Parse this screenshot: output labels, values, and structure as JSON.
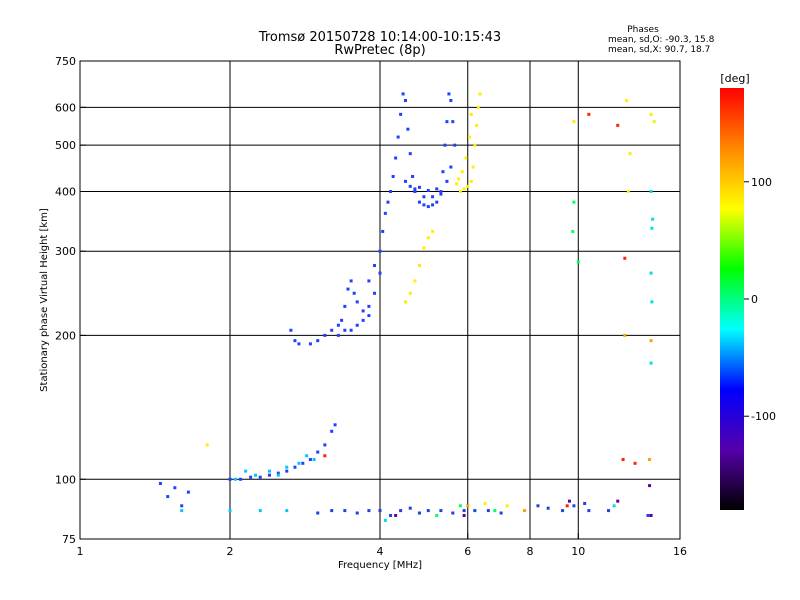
{
  "chart_data": {
    "type": "scatter",
    "title": "Tromsø 20150728 10:14:00-10:15:43",
    "subtitle": "RwPretec (8p)",
    "xlabel": "Frequency [MHz]",
    "ylabel": "Stationary phase Virtual Height [km]",
    "x_scale": "log",
    "y_scale": "log",
    "xlim": [
      1,
      16
    ],
    "ylim": [
      75,
      750
    ],
    "x_ticks": [
      1,
      2,
      4,
      6,
      8,
      10,
      16
    ],
    "y_ticks": [
      75,
      100,
      200,
      300,
      400,
      500,
      600,
      750
    ],
    "grid": true,
    "phases": {
      "heading": "Phases",
      "o_line": "mean, sd,O: -90.3, 15.8",
      "x_line": "mean, sd,X:  90.7, 18.7"
    },
    "colorbar": {
      "label": "[deg]",
      "ticks": [
        100,
        0,
        -100
      ],
      "range": [
        -180,
        180
      ],
      "colors_top_to_bottom": [
        "#ff0000",
        "#ff8800",
        "#ffff00",
        "#00ff00",
        "#00ffff",
        "#0000ff",
        "#5500aa",
        "#000000"
      ]
    },
    "series": [
      {
        "color": "#1e40ff",
        "points": [
          [
            1.45,
            98
          ],
          [
            1.5,
            92
          ],
          [
            1.6,
            88
          ],
          [
            1.65,
            94
          ],
          [
            1.55,
            96
          ],
          [
            2.0,
            100
          ],
          [
            2.1,
            100
          ],
          [
            2.2,
            101
          ],
          [
            2.3,
            101
          ],
          [
            2.4,
            102
          ],
          [
            2.5,
            103
          ],
          [
            2.6,
            104
          ],
          [
            2.7,
            106
          ],
          [
            2.8,
            108
          ],
          [
            2.9,
            110
          ],
          [
            3.0,
            114
          ],
          [
            3.1,
            118
          ],
          [
            3.2,
            126
          ],
          [
            3.25,
            130
          ],
          [
            2.65,
            205
          ],
          [
            2.7,
            195
          ],
          [
            2.75,
            192
          ],
          [
            2.9,
            192
          ],
          [
            3.0,
            195
          ],
          [
            3.1,
            200
          ],
          [
            3.2,
            205
          ],
          [
            3.3,
            200
          ],
          [
            3.35,
            215
          ],
          [
            3.4,
            230
          ],
          [
            3.45,
            250
          ],
          [
            3.5,
            260
          ],
          [
            3.55,
            245
          ],
          [
            3.6,
            235
          ],
          [
            3.7,
            225
          ],
          [
            3.8,
            230
          ],
          [
            3.9,
            245
          ],
          [
            4.0,
            270
          ],
          [
            3.3,
            210
          ],
          [
            3.4,
            205
          ],
          [
            3.5,
            205
          ],
          [
            3.6,
            210
          ],
          [
            3.7,
            215
          ],
          [
            3.8,
            220
          ],
          [
            3.8,
            260
          ],
          [
            3.9,
            280
          ],
          [
            4.0,
            300
          ],
          [
            4.05,
            330
          ],
          [
            4.1,
            360
          ],
          [
            4.15,
            380
          ],
          [
            4.2,
            400
          ],
          [
            4.25,
            430
          ],
          [
            4.3,
            470
          ],
          [
            4.35,
            520
          ],
          [
            4.4,
            580
          ],
          [
            4.45,
            640
          ],
          [
            4.5,
            620
          ],
          [
            4.55,
            540
          ],
          [
            4.6,
            480
          ],
          [
            4.65,
            430
          ],
          [
            4.7,
            400
          ],
          [
            4.8,
            380
          ],
          [
            4.9,
            375
          ],
          [
            5.0,
            372
          ],
          [
            5.1,
            375
          ],
          [
            5.2,
            380
          ],
          [
            5.3,
            400
          ],
          [
            5.35,
            440
          ],
          [
            5.4,
            500
          ],
          [
            5.45,
            560
          ],
          [
            5.5,
            640
          ],
          [
            5.55,
            620
          ],
          [
            5.6,
            560
          ],
          [
            5.65,
            500
          ],
          [
            5.55,
            450
          ],
          [
            5.45,
            420
          ],
          [
            5.3,
            395
          ],
          [
            5.1,
            390
          ],
          [
            4.9,
            390
          ],
          [
            4.7,
            400
          ],
          [
            4.5,
            420
          ],
          [
            4.6,
            410
          ],
          [
            4.7,
            405
          ],
          [
            4.8,
            408
          ],
          [
            5.0,
            402
          ],
          [
            5.2,
            405
          ]
        ]
      },
      {
        "color": "#00c8ff",
        "points": [
          [
            2.05,
            100
          ],
          [
            2.15,
            104
          ],
          [
            2.25,
            102
          ],
          [
            2.4,
            104
          ],
          [
            2.5,
            102
          ],
          [
            2.6,
            106
          ],
          [
            2.75,
            108
          ],
          [
            2.85,
            112
          ],
          [
            2.95,
            110
          ],
          [
            1.6,
            86
          ],
          [
            2.0,
            86
          ],
          [
            2.3,
            86
          ],
          [
            2.6,
            86
          ]
        ]
      },
      {
        "color": "#2040e0",
        "points": [
          [
            3.0,
            85
          ],
          [
            3.2,
            86
          ],
          [
            3.4,
            86
          ],
          [
            3.6,
            85
          ],
          [
            3.8,
            86
          ],
          [
            4.0,
            86
          ],
          [
            4.2,
            84
          ],
          [
            4.4,
            86
          ],
          [
            4.6,
            87
          ],
          [
            4.8,
            85
          ],
          [
            5.0,
            86
          ],
          [
            5.3,
            86
          ],
          [
            5.6,
            85
          ],
          [
            5.9,
            86
          ],
          [
            6.2,
            86
          ],
          [
            6.6,
            86
          ],
          [
            7.0,
            85
          ],
          [
            8.3,
            88
          ],
          [
            8.7,
            87
          ],
          [
            9.3,
            86
          ],
          [
            9.8,
            88
          ],
          [
            10.3,
            89
          ],
          [
            10.5,
            86
          ],
          [
            11.5,
            86
          ],
          [
            13.8,
            84
          ]
        ]
      },
      {
        "color": "#ffee00",
        "points": [
          [
            4.5,
            235
          ],
          [
            4.6,
            245
          ],
          [
            4.7,
            260
          ],
          [
            4.8,
            280
          ],
          [
            4.9,
            305
          ],
          [
            5.0,
            320
          ],
          [
            5.1,
            330
          ],
          [
            5.8,
            400
          ],
          [
            5.9,
            405
          ],
          [
            6.0,
            410
          ],
          [
            6.1,
            420
          ],
          [
            6.15,
            450
          ],
          [
            6.2,
            500
          ],
          [
            6.25,
            550
          ],
          [
            6.3,
            600
          ],
          [
            6.35,
            640
          ],
          [
            5.7,
            415
          ],
          [
            5.75,
            425
          ],
          [
            5.85,
            440
          ],
          [
            5.95,
            470
          ],
          [
            6.05,
            520
          ],
          [
            6.1,
            580
          ],
          [
            9.8,
            560
          ],
          [
            12.5,
            620
          ],
          [
            12.7,
            480
          ],
          [
            12.6,
            400
          ],
          [
            14.0,
            580
          ],
          [
            14.2,
            560
          ],
          [
            1.8,
            118
          ],
          [
            6.5,
            89
          ],
          [
            7.2,
            88
          ]
        ]
      },
      {
        "color": "#00ff60",
        "points": [
          [
            9.8,
            380
          ],
          [
            9.75,
            330
          ],
          [
            10.0,
            285
          ],
          [
            5.2,
            84
          ],
          [
            5.8,
            88
          ],
          [
            6.8,
            86
          ]
        ]
      },
      {
        "color": "#ff2200",
        "points": [
          [
            10.5,
            580
          ],
          [
            12.0,
            550
          ],
          [
            12.4,
            290
          ],
          [
            12.3,
            110
          ],
          [
            13.0,
            108
          ],
          [
            3.1,
            112
          ],
          [
            9.5,
            88
          ]
        ]
      },
      {
        "color": "#ffa000",
        "points": [
          [
            12.4,
            200
          ],
          [
            14.0,
            195
          ],
          [
            13.9,
            110
          ],
          [
            6.0,
            88
          ],
          [
            7.8,
            86
          ]
        ]
      },
      {
        "color": "#00e0e0",
        "points": [
          [
            14.0,
            400
          ],
          [
            14.1,
            350
          ],
          [
            14.05,
            335
          ],
          [
            14.0,
            270
          ],
          [
            14.05,
            235
          ],
          [
            14.0,
            175
          ],
          [
            11.8,
            88
          ],
          [
            4.1,
            82
          ]
        ]
      },
      {
        "color": "#6000a0",
        "points": [
          [
            13.9,
            97
          ],
          [
            14.0,
            84
          ],
          [
            12.0,
            90
          ],
          [
            9.6,
            90
          ],
          [
            5.9,
            84
          ],
          [
            4.3,
            84
          ]
        ]
      }
    ]
  }
}
